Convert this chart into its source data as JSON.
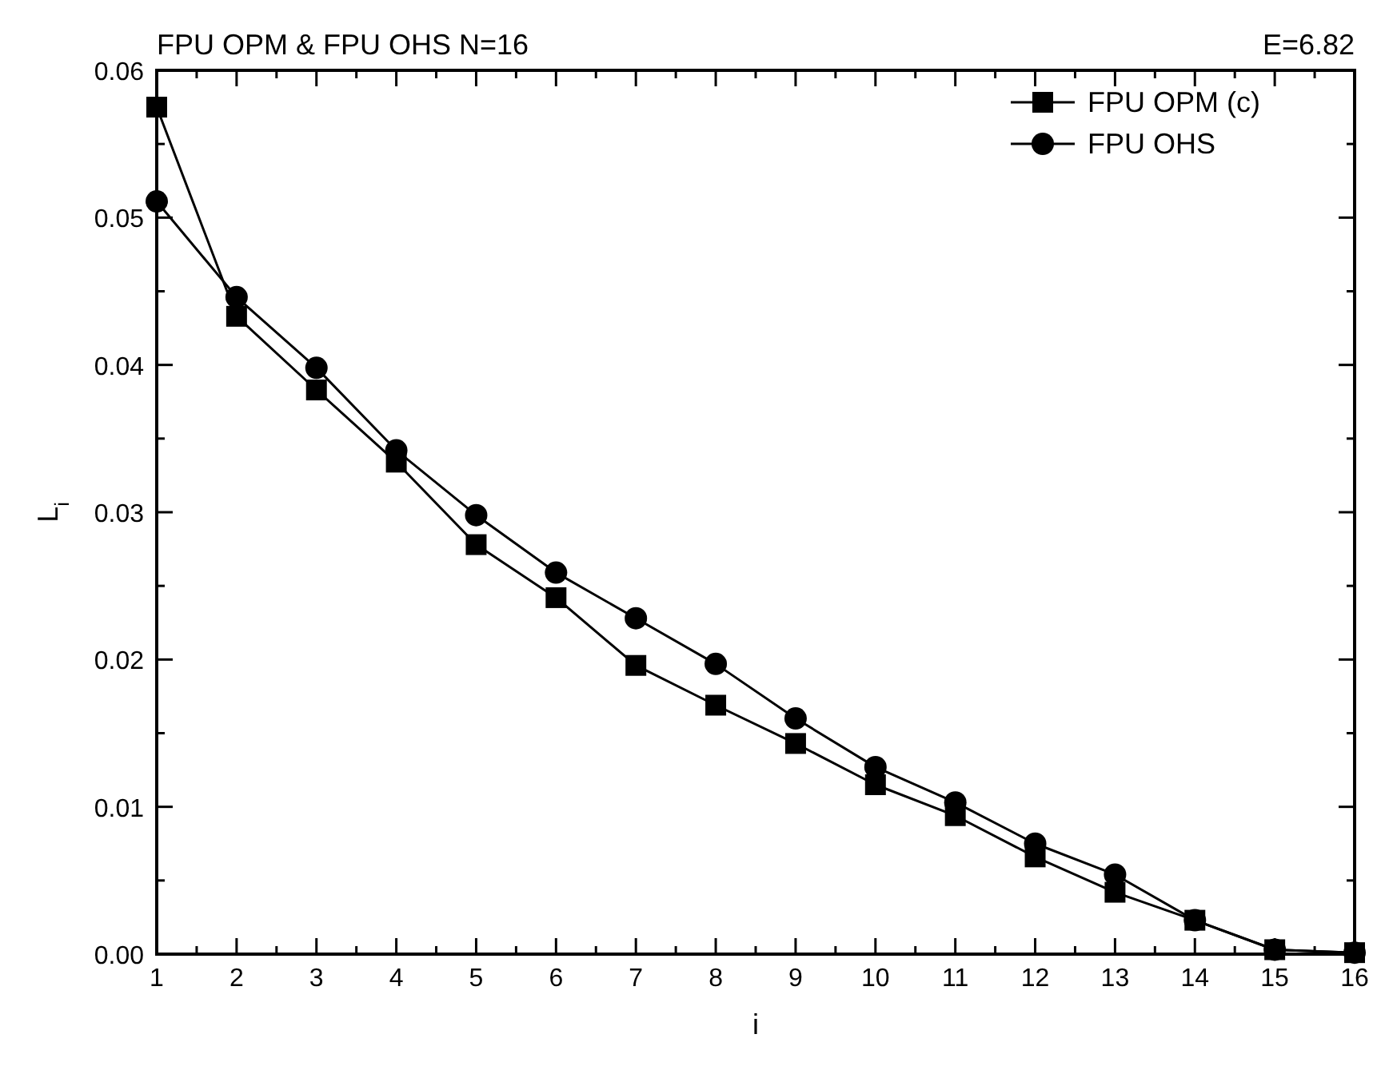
{
  "chart_data": {
    "type": "line",
    "title": "FPU OPM & FPU OHS N=16",
    "xlabel": "i",
    "ylabel": "L$_{i}$",
    "annotations": [
      "E=6.82"
    ],
    "x": [
      1,
      2,
      3,
      4,
      5,
      6,
      7,
      8,
      9,
      10,
      11,
      12,
      13,
      14,
      15,
      16
    ],
    "series": [
      {
        "name": "FPU OPM (c)",
        "color": "#000000",
        "marker": "square",
        "values": [
          0.0575,
          0.0433,
          0.0383,
          0.0334,
          0.0278,
          0.0242,
          0.0196,
          0.0169,
          0.0143,
          0.0115,
          0.0094,
          0.0066,
          0.0042,
          0.0023,
          0.0003,
          0.0001
        ]
      },
      {
        "name": "FPU OHS",
        "color": "#000000",
        "marker": "circle",
        "values": [
          0.0511,
          0.0446,
          0.0398,
          0.0342,
          0.0298,
          0.0259,
          0.0228,
          0.0197,
          0.016,
          0.0127,
          0.0103,
          0.0075,
          0.0054,
          0.0023,
          0.0003,
          0.0001
        ]
      }
    ],
    "xlim": [
      1,
      16
    ],
    "xticks": [
      1,
      {
        "value": 1.5,
        "label": null
      },
      2,
      {
        "value": 2.5,
        "label": null
      },
      3,
      {
        "value": 3.5,
        "label": null
      },
      4,
      {
        "value": 4.5,
        "label": null
      },
      5,
      {
        "value": 5.5,
        "label": null
      },
      6,
      {
        "value": 6.5,
        "label": null
      },
      7,
      {
        "value": 7.5,
        "label": null
      },
      8,
      {
        "value": 8.5,
        "label": null
      },
      9,
      {
        "value": 9.5,
        "label": null
      },
      10,
      {
        "value": 10.5,
        "label": null
      },
      11,
      {
        "value": 11.5,
        "label": null
      },
      12,
      {
        "value": 12.5,
        "label": null
      },
      13,
      {
        "value": 13.5,
        "label": null
      },
      14,
      {
        "value": 14.5,
        "label": null
      },
      15,
      {
        "value": 15.5,
        "label": null
      },
      16
    ],
    "ylim": [
      0,
      0.06
    ],
    "yticks": [
      {
        "value": 0,
        "label": "0.00"
      },
      {
        "value": 0.005,
        "label": null
      },
      {
        "value": 0.01,
        "label": "0.01"
      },
      {
        "value": 0.015,
        "label": null
      },
      {
        "value": 0.02,
        "label": "0.02"
      },
      {
        "value": 0.025,
        "label": null
      },
      {
        "value": 0.03,
        "label": "0.03"
      },
      {
        "value": 0.035,
        "label": null
      },
      {
        "value": 0.04,
        "label": "0.04"
      },
      {
        "value": 0.045,
        "label": null
      },
      {
        "value": 0.05,
        "label": "0.05"
      },
      {
        "value": 0.055,
        "label": null
      },
      {
        "value": 0.06,
        "label": "0.06"
      }
    ],
    "grid": false,
    "legend": "top right",
    "line_style": "solid"
  }
}
